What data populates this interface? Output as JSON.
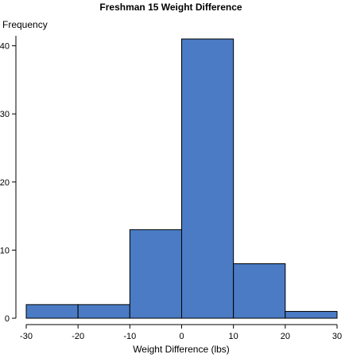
{
  "chart_data": {
    "type": "bar",
    "title": "Freshman 15 Weight Difference",
    "xlabel": "Weight Difference (lbs)",
    "ylabel": "Frequency",
    "bins": [
      {
        "x0": -30,
        "x1": -20,
        "count": 2
      },
      {
        "x0": -20,
        "x1": -10,
        "count": 2
      },
      {
        "x0": -10,
        "x1": 0,
        "count": 13
      },
      {
        "x0": 0,
        "x1": 10,
        "count": 41
      },
      {
        "x0": 10,
        "x1": 20,
        "count": 8
      },
      {
        "x0": 20,
        "x1": 30,
        "count": 1
      }
    ],
    "xlim": [
      -30,
      30
    ],
    "ylim": [
      0,
      41
    ],
    "xticks": [
      -30,
      -20,
      -10,
      0,
      10,
      20,
      30
    ],
    "yticks": [
      0,
      10,
      20,
      30,
      40
    ],
    "grid": false,
    "colors": {
      "bar": "#4a7bc4",
      "edge": "#000000"
    }
  }
}
